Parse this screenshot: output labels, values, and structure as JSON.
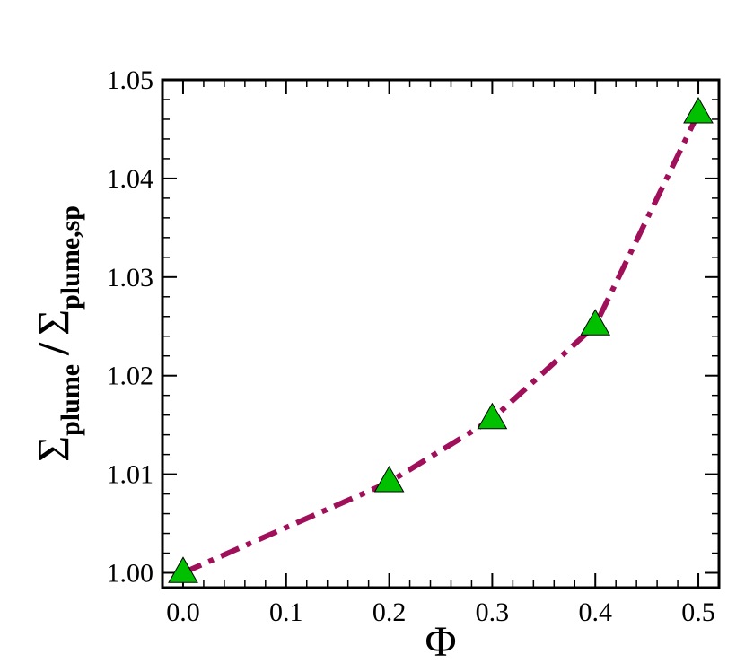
{
  "chart_data": {
    "type": "line",
    "title": "",
    "xlabel": "Φ",
    "ylabel": {
      "symbol1": "Σ",
      "sub1": "plume",
      "slash": "/",
      "symbol2": "Σ",
      "sub2": "plume,sp"
    },
    "xlim": [
      -0.02,
      0.52
    ],
    "ylim": [
      0.9985,
      1.05
    ],
    "x_ticks": [
      0.0,
      0.1,
      0.2,
      0.3,
      0.4,
      0.5
    ],
    "x_tick_labels": [
      "0.0",
      "0.1",
      "0.2",
      "0.3",
      "0.4",
      "0.5"
    ],
    "y_ticks": [
      1.0,
      1.01,
      1.02,
      1.03,
      1.04,
      1.05
    ],
    "y_tick_labels": [
      "1.00",
      "1.01",
      "1.02",
      "1.03",
      "1.04",
      "1.05"
    ],
    "grid": false,
    "series": [
      {
        "x": [
          0.0,
          0.2,
          0.3,
          0.4,
          0.5
        ],
        "y": [
          1.0,
          1.0092,
          1.0156,
          1.0251,
          1.0466
        ],
        "line_color": "#A0105A",
        "line_style": "dash-dot",
        "marker": "triangle",
        "marker_color": "#00C000"
      }
    ]
  }
}
